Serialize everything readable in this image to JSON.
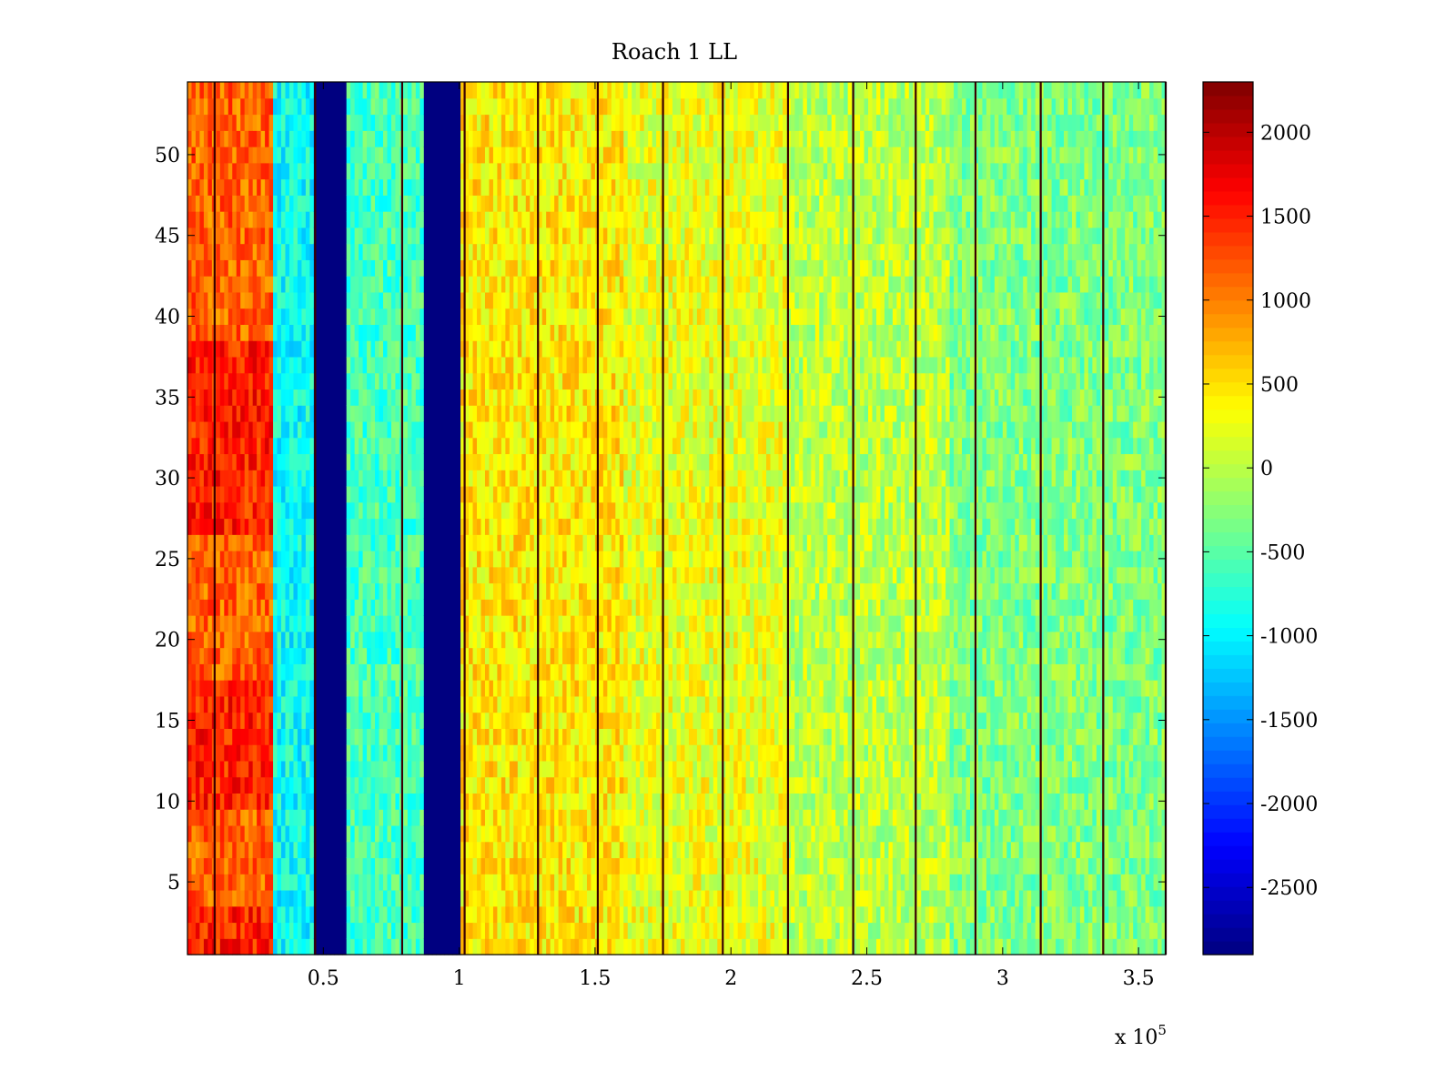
{
  "chart_data": {
    "type": "heatmap",
    "title": "Roach 1 LL",
    "xlabel": "",
    "ylabel": "",
    "x_exponent_label": "x 10",
    "x_exponent_power": "5",
    "xlim": [
      0,
      3.6
    ],
    "ylim": [
      0.5,
      54.5
    ],
    "xticks": [
      0.5,
      1,
      1.5,
      2,
      2.5,
      3,
      3.5
    ],
    "xtick_labels": [
      "0.5",
      "1",
      "1.5",
      "2",
      "2.5",
      "3",
      "3.5"
    ],
    "yticks": [
      5,
      10,
      15,
      20,
      25,
      30,
      35,
      40,
      45,
      50
    ],
    "ytick_labels": [
      "5",
      "10",
      "15",
      "20",
      "25",
      "30",
      "35",
      "40",
      "45",
      "50"
    ],
    "rows": 54,
    "colormap": "jet",
    "clim": [
      -2900,
      2300
    ],
    "colorbar_ticks": [
      2000,
      1500,
      1000,
      500,
      0,
      -500,
      -1000,
      -1500,
      -2000,
      -2500
    ],
    "colorbar_tick_labels": [
      "2000",
      "1500",
      "1000",
      "500",
      "0",
      "-500",
      "-1000",
      "-1500",
      "-2000",
      "-2500"
    ],
    "column_bands": [
      {
        "x_start": 0.0,
        "x_end": 0.31,
        "level": 1150
      },
      {
        "x_start": 0.31,
        "x_end": 0.47,
        "level": -900
      },
      {
        "x_start": 0.47,
        "x_end": 0.59,
        "level": -2900
      },
      {
        "x_start": 0.59,
        "x_end": 0.87,
        "level": -600
      },
      {
        "x_start": 0.87,
        "x_end": 1.0,
        "level": -2900
      },
      {
        "x_start": 1.0,
        "x_end": 1.6,
        "level": 450
      },
      {
        "x_start": 1.6,
        "x_end": 2.2,
        "level": 250
      },
      {
        "x_start": 2.2,
        "x_end": 2.8,
        "level": 0
      },
      {
        "x_start": 2.8,
        "x_end": 3.6,
        "level": -300
      }
    ],
    "dark_vertical_lines_x": [
      0.1,
      0.47,
      0.79,
      1.02,
      1.29,
      1.51,
      1.75,
      1.97,
      2.21,
      2.45,
      2.68,
      2.9,
      3.14,
      3.37,
      3.6
    ]
  }
}
